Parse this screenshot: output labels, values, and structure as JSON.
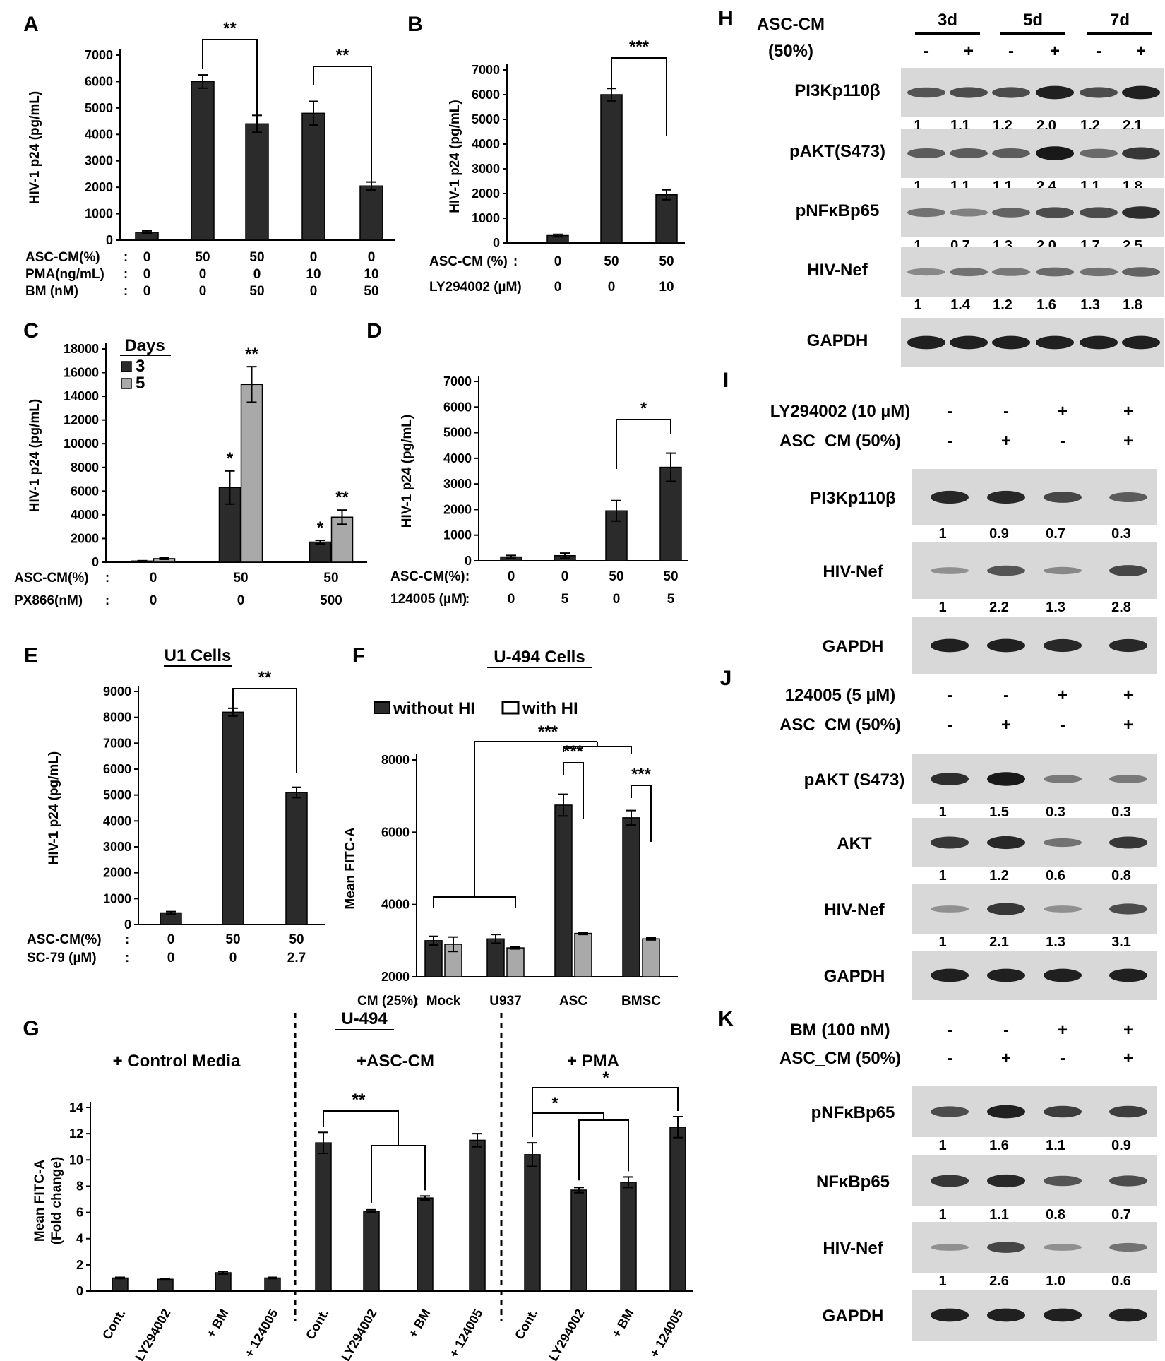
{
  "chart_data": [
    {
      "panel": "A",
      "type": "bar",
      "ylabel": "HIV-1 p24 (pg/mL)",
      "ylim": [
        0,
        7000
      ],
      "yticks": [
        0,
        1000,
        2000,
        3000,
        4000,
        5000,
        6000,
        7000
      ],
      "values": [
        300,
        6000,
        4400,
        4800,
        2050
      ],
      "errors": [
        50,
        250,
        320,
        450,
        150
      ],
      "conditions": [
        {
          "label": "ASC-CM(%)",
          "values": [
            "0",
            "50",
            "50",
            "0",
            "0"
          ]
        },
        {
          "label": "PMA(ng/mL)",
          "values": [
            "0",
            "0",
            "0",
            "10",
            "10"
          ]
        },
        {
          "label": "BM (nM)",
          "values": [
            "0",
            "0",
            "50",
            "0",
            "50"
          ]
        }
      ],
      "significance": [
        {
          "from": 1,
          "to": 2,
          "text": "**"
        },
        {
          "from": 3,
          "to": 4,
          "text": "**"
        }
      ]
    },
    {
      "panel": "B",
      "type": "bar",
      "ylabel": "HIV-1 p24 (pg/mL)",
      "ylim": [
        0,
        7000
      ],
      "yticks": [
        0,
        1000,
        2000,
        3000,
        4000,
        5000,
        6000,
        7000
      ],
      "values": [
        300,
        6000,
        1950
      ],
      "errors": [
        50,
        250,
        200
      ],
      "conditions": [
        {
          "label": "ASC-CM (%)",
          "values": [
            "0",
            "50",
            "50"
          ]
        },
        {
          "label": "LY294002 (µM)",
          "values": [
            "0",
            "0",
            "10"
          ]
        }
      ],
      "significance": [
        {
          "from": 1,
          "to": 2,
          "text": "***"
        }
      ]
    },
    {
      "panel": "C",
      "type": "bar",
      "ylabel": "HIV-1 p24 (pg/mL)",
      "ylim": [
        0,
        18000
      ],
      "yticks": [
        0,
        2000,
        4000,
        6000,
        8000,
        10000,
        12000,
        14000,
        16000,
        18000
      ],
      "legend_title": "Days",
      "series": [
        {
          "name": "3",
          "values": [
            100,
            6300,
            1700
          ],
          "errors": [
            30,
            1400,
            150
          ],
          "marks": [
            "",
            "*",
            "*"
          ]
        },
        {
          "name": "5",
          "values": [
            300,
            15000,
            3800
          ],
          "errors": [
            60,
            1500,
            600
          ],
          "marks": [
            "",
            "**",
            "**"
          ]
        }
      ],
      "conditions": [
        {
          "label": "ASC-CM(%)",
          "values": [
            "0",
            "50",
            "50"
          ]
        },
        {
          "label": "PX866(nM)",
          "values": [
            "0",
            "0",
            "500"
          ]
        }
      ]
    },
    {
      "panel": "D",
      "type": "bar",
      "ylabel": "HIV-1 p24 (pg/mL)",
      "ylim": [
        0,
        7000
      ],
      "yticks": [
        0,
        1000,
        2000,
        3000,
        4000,
        5000,
        6000,
        7000
      ],
      "values": [
        150,
        200,
        1950,
        3650
      ],
      "errors": [
        60,
        100,
        400,
        550
      ],
      "conditions": [
        {
          "label": "ASC-CM(%)",
          "values": [
            "0",
            "0",
            "50",
            "50"
          ]
        },
        {
          "label": "124005 (µM)",
          "values": [
            "0",
            "5",
            "0",
            "5"
          ]
        }
      ],
      "significance": [
        {
          "from": 2,
          "to": 3,
          "text": "*"
        }
      ]
    },
    {
      "panel": "E",
      "type": "bar",
      "title": "U1 Cells",
      "ylabel": "HIV-1 p24 (pg/mL)",
      "ylim": [
        0,
        9000
      ],
      "yticks": [
        0,
        1000,
        2000,
        3000,
        4000,
        5000,
        6000,
        7000,
        8000,
        9000
      ],
      "values": [
        450,
        8200,
        5100
      ],
      "errors": [
        50,
        150,
        200
      ],
      "conditions": [
        {
          "label": "ASC-CM(%)",
          "values": [
            "0",
            "50",
            "50"
          ]
        },
        {
          "label": "SC-79 (µM)",
          "values": [
            "0",
            "0",
            "2.7"
          ]
        }
      ],
      "significance": [
        {
          "from": 1,
          "to": 2,
          "text": "**"
        }
      ]
    },
    {
      "panel": "F",
      "type": "bar",
      "title": "U-494 Cells",
      "ylabel": "Mean FITC-A",
      "ylim": [
        2000,
        8000
      ],
      "yticks": [
        2000,
        4000,
        6000,
        8000
      ],
      "categories": [
        "Mock",
        "U937",
        "ASC",
        "BMSC"
      ],
      "cond_label": "CM (25%)",
      "series": [
        {
          "name": "without HI",
          "values": [
            3000,
            3050,
            6750,
            6400
          ],
          "errors": [
            120,
            120,
            300,
            200
          ]
        },
        {
          "name": "with HI",
          "values": [
            2900,
            2800,
            3200,
            3050
          ],
          "errors": [
            200,
            30,
            30,
            30
          ]
        }
      ],
      "significance": [
        "***",
        "***",
        "***"
      ]
    },
    {
      "panel": "G",
      "type": "bar",
      "title": "U-494",
      "ylabel": "Mean FITC-A (Fold change)",
      "ylim": [
        0,
        14
      ],
      "yticks": [
        0,
        2,
        4,
        6,
        8,
        10,
        12,
        14
      ],
      "groups": [
        {
          "name": "+ Control Media",
          "categories": [
            "Cont.",
            "+ LY294002",
            "+ BM",
            "+ 124005"
          ],
          "values": [
            1.0,
            0.9,
            1.4,
            1.0
          ],
          "errors": [
            0.05,
            0.05,
            0.1,
            0.05
          ]
        },
        {
          "name": "+ASC-CM",
          "categories": [
            "Cont.",
            "+ LY294002",
            "+ BM",
            "+ 124005"
          ],
          "values": [
            11.3,
            6.1,
            7.1,
            11.5
          ],
          "errors": [
            0.8,
            0.1,
            0.15,
            0.5
          ]
        },
        {
          "name": "+ PMA",
          "categories": [
            "Cont.",
            "+ LY294002",
            "+ BM",
            "+ 124005"
          ],
          "values": [
            10.4,
            7.7,
            8.3,
            12.5
          ],
          "errors": [
            0.9,
            0.2,
            0.4,
            0.8
          ]
        }
      ],
      "significance": [
        "**",
        "*",
        "*"
      ]
    }
  ],
  "labels": {
    "A": "A",
    "B": "B",
    "C": "C",
    "D": "D",
    "E": "E",
    "F": "F",
    "G": "G",
    "H": "H",
    "I": "I",
    "J": "J",
    "K": "K"
  },
  "blots": [
    {
      "panel": "H",
      "header_lines": [
        "ASC-CM",
        "(50%)"
      ],
      "day_labels": [
        "3d",
        "5d",
        "7d"
      ],
      "treatment": [
        "-",
        "+",
        "-",
        "+",
        "-",
        "+"
      ],
      "rows": [
        {
          "name": "PI3Kp110β",
          "quant": [
            "1",
            "1.1",
            "1.2",
            "2.0",
            "1.2",
            "2.1"
          ],
          "intensity": [
            0.55,
            0.6,
            0.6,
            0.9,
            0.6,
            0.9
          ]
        },
        {
          "name": "pAKT(S473)",
          "quant": [
            "1",
            "1.1",
            "1.1",
            "2.4",
            "1.1",
            "1.8"
          ],
          "intensity": [
            0.5,
            0.5,
            0.5,
            0.95,
            0.4,
            0.75
          ]
        },
        {
          "name": "pNFκBp65",
          "quant": [
            "1",
            "0.7",
            "1.3",
            "2.0",
            "1.7",
            "2.5"
          ],
          "intensity": [
            0.35,
            0.25,
            0.45,
            0.6,
            0.6,
            0.8
          ]
        },
        {
          "name": "HIV-Nef",
          "quant": [
            "1",
            "1.4",
            "1.2",
            "1.6",
            "1.3",
            "1.8"
          ],
          "intensity": [
            0.2,
            0.35,
            0.3,
            0.4,
            0.35,
            0.45
          ]
        },
        {
          "name": "GAPDH",
          "quant": [],
          "intensity": [
            0.9,
            0.9,
            0.9,
            0.9,
            0.9,
            0.9
          ]
        }
      ]
    },
    {
      "panel": "I",
      "conditions": [
        {
          "label": "LY294002 (10 µM)",
          "values": [
            "-",
            "-",
            "+",
            "+"
          ]
        },
        {
          "label": "ASC_CM (50%)",
          "values": [
            "-",
            "+",
            "-",
            "+"
          ]
        }
      ],
      "rows": [
        {
          "name": "PI3Kp110β",
          "quant": [
            "1",
            "0.9",
            "0.7",
            "0.3"
          ],
          "intensity": [
            0.85,
            0.85,
            0.65,
            0.5
          ]
        },
        {
          "name": "HIV-Nef",
          "quant": [
            "1",
            "2.2",
            "1.3",
            "2.8"
          ],
          "intensity": [
            0.15,
            0.55,
            0.2,
            0.65
          ]
        },
        {
          "name": "GAPDH",
          "quant": [],
          "intensity": [
            0.9,
            0.9,
            0.85,
            0.85
          ]
        }
      ]
    },
    {
      "panel": "J",
      "conditions": [
        {
          "label": "124005 (5 µM)",
          "values": [
            "-",
            "-",
            "+",
            "+"
          ]
        },
        {
          "label": "ASC_CM (50%)",
          "values": [
            "-",
            "+",
            "-",
            "+"
          ]
        }
      ],
      "rows": [
        {
          "name": "pAKT (S473)",
          "quant": [
            "1",
            "1.5",
            "0.3",
            "0.3"
          ],
          "intensity": [
            0.8,
            0.95,
            0.3,
            0.3
          ]
        },
        {
          "name": "AKT",
          "quant": [
            "1",
            "1.2",
            "0.6",
            "0.8"
          ],
          "intensity": [
            0.75,
            0.85,
            0.35,
            0.75
          ]
        },
        {
          "name": "HIV-Nef",
          "quant": [
            "1",
            "2.1",
            "1.3",
            "3.1"
          ],
          "intensity": [
            0.15,
            0.75,
            0.15,
            0.6
          ]
        },
        {
          "name": "GAPDH",
          "quant": [],
          "intensity": [
            0.9,
            0.9,
            0.9,
            0.9
          ]
        }
      ]
    },
    {
      "panel": "K",
      "conditions": [
        {
          "label": "BM (100 nM)",
          "values": [
            "-",
            "-",
            "+",
            "+"
          ]
        },
        {
          "label": "ASC_CM (50%)",
          "values": [
            "-",
            "+",
            "-",
            "+"
          ]
        }
      ],
      "rows": [
        {
          "name": "pNFκBp65",
          "quant": [
            "1",
            "1.6",
            "1.1",
            "0.9"
          ],
          "intensity": [
            0.6,
            0.9,
            0.7,
            0.7
          ]
        },
        {
          "name": "NFκBp65",
          "quant": [
            "1",
            "1.1",
            "0.8",
            "0.7"
          ],
          "intensity": [
            0.75,
            0.85,
            0.55,
            0.6
          ]
        },
        {
          "name": "HIV-Nef",
          "quant": [
            "1",
            "2.6",
            "1.0",
            "0.6"
          ],
          "intensity": [
            0.15,
            0.65,
            0.15,
            0.35
          ]
        },
        {
          "name": "GAPDH",
          "quant": [],
          "intensity": [
            0.9,
            0.9,
            0.9,
            0.9
          ]
        }
      ]
    }
  ],
  "colors": {
    "dark_bar": "#2b2b2b",
    "light_bar": "#a9a9a9",
    "blot_bg": "#d8d8d8",
    "band": "#111111"
  }
}
